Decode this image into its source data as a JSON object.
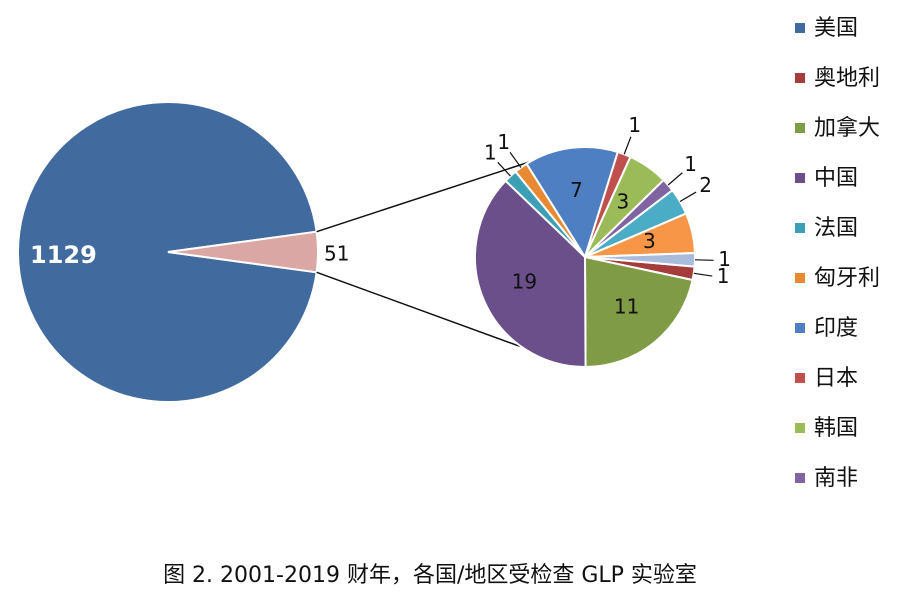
{
  "chart_data": {
    "type": "pie",
    "title": "图 2. 2001-2019 财年，各国/地区受检查 GLP 实验室",
    "categories": [
      "美国",
      "奥地利",
      "加拿大",
      "中国",
      "法国",
      "匈牙利",
      "印度",
      "日本",
      "韩国",
      "南非",
      null,
      null,
      null
    ],
    "values": [
      1129,
      1,
      11,
      19,
      1,
      1,
      7,
      1,
      3,
      1,
      2,
      3,
      1
    ],
    "colors": [
      "#416a9e",
      "#a33c3b",
      "#7f9b46",
      "#6a4f8a",
      "#3b9fb5",
      "#e88a33",
      "#4e7fc2",
      "#c0504d",
      "#9bbb59",
      "#8064a2",
      "#4bacc6",
      "#f79646",
      "#a9bcdc"
    ],
    "other": {
      "value": 51,
      "color": "#dba7a5"
    }
  }
}
